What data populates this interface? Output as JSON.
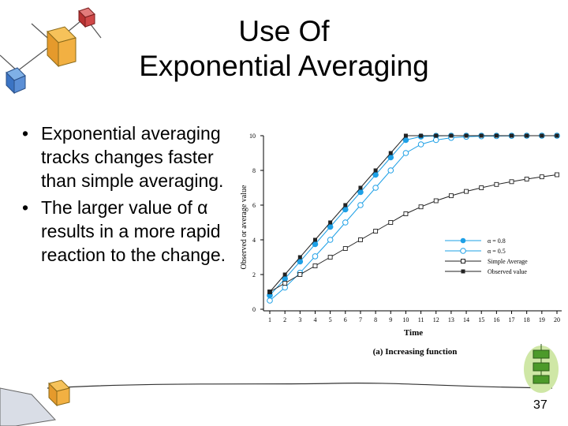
{
  "slide": {
    "title_line1": "Use Of",
    "title_line2": "Exponential Averaging",
    "bullets": [
      {
        "marker": "•",
        "text": "Exponential averaging tracks changes faster than simple averaging."
      },
      {
        "marker": "•",
        "text": "The larger value of α results in a more rapid reaction to the change."
      }
    ],
    "page_number": "37"
  },
  "chart_data": {
    "type": "line",
    "caption": "(a) Increasing function",
    "xlabel": "Time",
    "ylabel": "Observed or average value",
    "x": [
      1,
      2,
      3,
      4,
      5,
      6,
      7,
      8,
      9,
      10,
      11,
      12,
      13,
      14,
      15,
      16,
      17,
      18,
      19,
      20
    ],
    "xlim": [
      1,
      20
    ],
    "ylim": [
      0,
      10
    ],
    "yticks": [
      0,
      2,
      4,
      6,
      8,
      10
    ],
    "legend_position": "center-right",
    "series": [
      {
        "name": "α = 0.8",
        "color": "#1ea0e6",
        "marker": "filled-circle",
        "values": [
          0.8,
          1.76,
          2.75,
          3.75,
          4.75,
          5.75,
          6.75,
          7.75,
          8.75,
          9.75,
          9.95,
          9.99,
          10,
          10,
          10,
          10,
          10,
          10,
          10,
          10
        ]
      },
      {
        "name": "α = 0.5",
        "color": "#1ea0e6",
        "marker": "open-circle",
        "values": [
          0.5,
          1.25,
          2.1,
          3.05,
          4.0,
          5.0,
          6.0,
          7.0,
          8.0,
          9.0,
          9.5,
          9.75,
          9.88,
          9.94,
          9.97,
          9.98,
          9.99,
          10,
          10,
          10
        ]
      },
      {
        "name": "Simple Average",
        "color": "#222222",
        "marker": "open-square",
        "values": [
          1,
          1.5,
          2,
          2.5,
          3,
          3.5,
          4,
          4.5,
          5,
          5.5,
          5.9,
          6.25,
          6.54,
          6.79,
          7.0,
          7.19,
          7.35,
          7.5,
          7.63,
          7.75
        ]
      },
      {
        "name": "Observed value",
        "color": "#222222",
        "marker": "filled-square",
        "values": [
          1,
          2,
          3,
          4,
          5,
          6,
          7,
          8,
          9,
          10,
          10,
          10,
          10,
          10,
          10,
          10,
          10,
          10,
          10,
          10
        ]
      }
    ]
  }
}
